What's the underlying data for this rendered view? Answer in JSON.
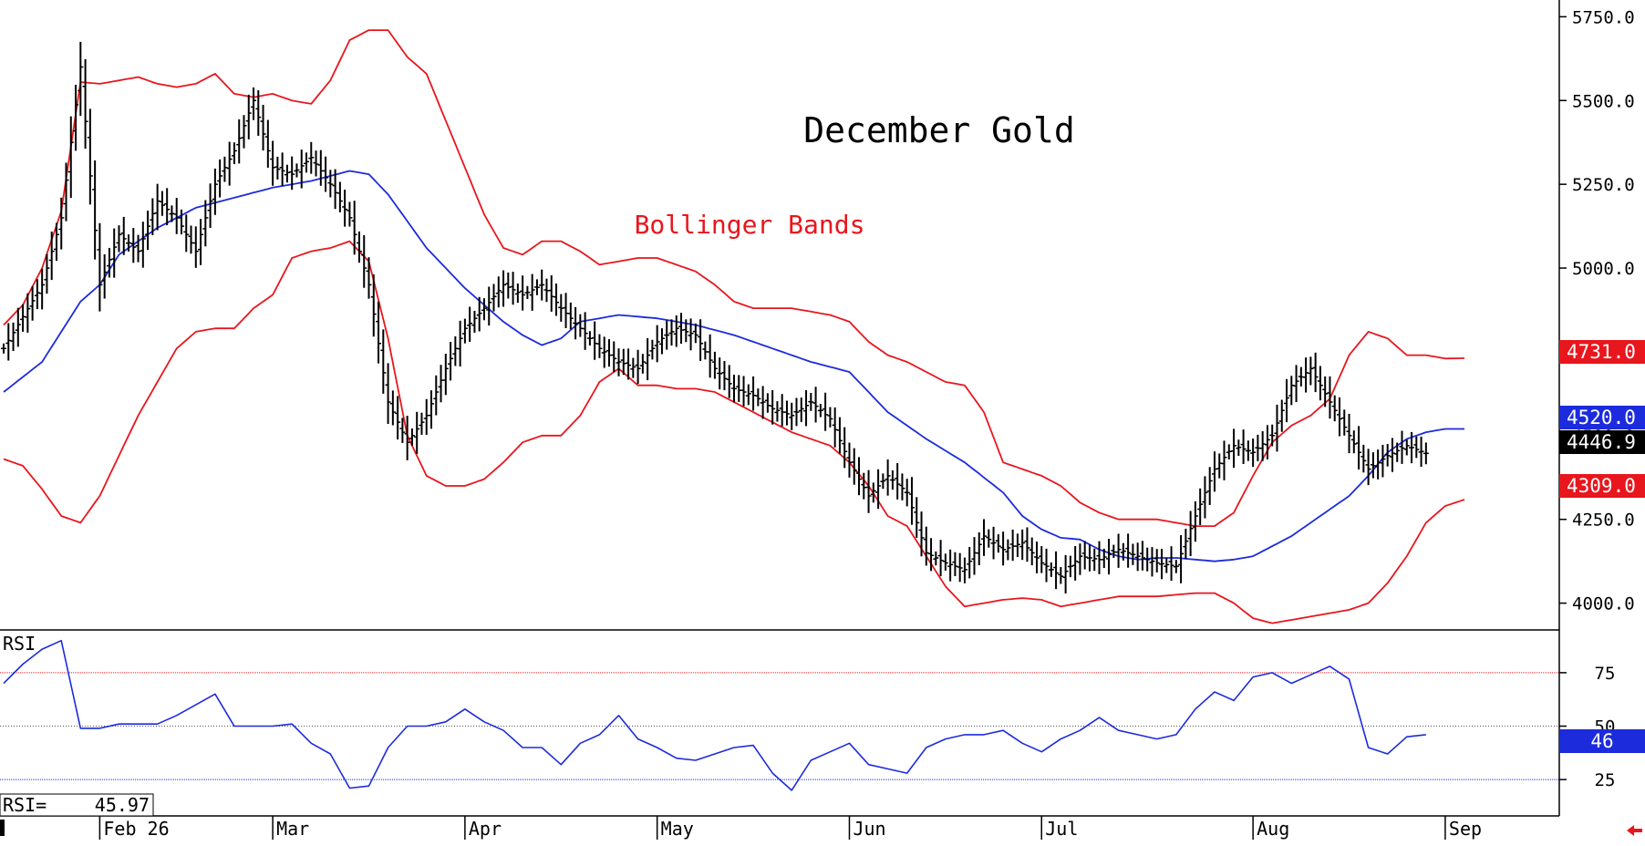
{
  "chart_data": {
    "type": "ohlc",
    "title": "December Gold",
    "annotation": "Bollinger Bands",
    "colors": {
      "price_bars": "#000000",
      "upper_band": "#e8161d",
      "lower_band": "#e8161d",
      "middle_band": "#1c2bdc",
      "rsi_line": "#1c2bdc",
      "rsi_upper_ref": "#e8161d",
      "rsi_mid_ref": "#555555",
      "rsi_lower_ref": "#1c2bdc",
      "badge_upper": "#e8161d",
      "badge_mid": "#1c2bdc",
      "badge_last": "#000000",
      "badge_lower": "#e8161d"
    },
    "price_axis": {
      "position": "right",
      "range": [
        3920,
        5800
      ],
      "ticks": [
        "5750.0",
        "5500.0",
        "5250.0",
        "5000.0",
        "4750.0",
        "4500.0",
        "4250.0",
        "4000.0"
      ],
      "tick_values": [
        5750,
        5500,
        5250,
        5000,
        4750,
        4500,
        4250,
        4000
      ]
    },
    "time_axis": {
      "labels": [
        "Feb 26",
        "Mar",
        "Apr",
        "May",
        "Jun",
        "Jul",
        "Aug",
        "Sep"
      ],
      "label_positions": [
        5,
        14,
        24,
        34,
        44,
        54,
        65,
        75
      ]
    },
    "badges": {
      "upper": "4731.0",
      "middle": "4520.0",
      "last": "4446.9",
      "lower": "4309.0"
    },
    "rsi": {
      "label": "RSI",
      "readout_label": "RSI=",
      "readout_value": "45.97",
      "badge": "46",
      "ticks": [
        "75",
        "50",
        "25"
      ],
      "tick_values": [
        75,
        50,
        25
      ],
      "range": [
        8,
        95
      ],
      "reference_levels": [
        75,
        50,
        25
      ]
    },
    "series": {
      "upper_knots": [
        [
          0,
          4830
        ],
        [
          1,
          4890
        ],
        [
          2,
          5000
        ],
        [
          3,
          5170
        ],
        [
          4,
          5555
        ],
        [
          5,
          5550
        ],
        [
          6,
          5560
        ],
        [
          7,
          5570
        ],
        [
          8,
          5550
        ],
        [
          9,
          5540
        ],
        [
          10,
          5550
        ],
        [
          11,
          5580
        ],
        [
          12,
          5520
        ],
        [
          13,
          5510
        ],
        [
          14,
          5520
        ],
        [
          15,
          5500
        ],
        [
          16,
          5490
        ],
        [
          17,
          5560
        ],
        [
          18,
          5680
        ],
        [
          19,
          5710
        ],
        [
          20,
          5710
        ],
        [
          21,
          5630
        ],
        [
          22,
          5580
        ],
        [
          23,
          5440
        ],
        [
          24,
          5300
        ],
        [
          25,
          5160
        ],
        [
          26,
          5060
        ],
        [
          27,
          5040
        ],
        [
          28,
          5080
        ],
        [
          29,
          5080
        ],
        [
          30,
          5050
        ],
        [
          31,
          5010
        ],
        [
          32,
          5020
        ],
        [
          33,
          5030
        ],
        [
          34,
          5030
        ],
        [
          35,
          5010
        ],
        [
          36,
          4990
        ],
        [
          37,
          4950
        ],
        [
          38,
          4900
        ],
        [
          39,
          4880
        ],
        [
          40,
          4880
        ],
        [
          41,
          4880
        ],
        [
          42,
          4870
        ],
        [
          43,
          4860
        ],
        [
          44,
          4840
        ],
        [
          45,
          4780
        ],
        [
          46,
          4740
        ],
        [
          47,
          4720
        ],
        [
          48,
          4690
        ],
        [
          49,
          4660
        ],
        [
          50,
          4650
        ],
        [
          51,
          4570
        ],
        [
          52,
          4420
        ],
        [
          53,
          4400
        ],
        [
          54,
          4380
        ],
        [
          55,
          4350
        ],
        [
          56,
          4300
        ],
        [
          57,
          4270
        ],
        [
          58,
          4250
        ],
        [
          59,
          4250
        ],
        [
          60,
          4250
        ],
        [
          61,
          4240
        ],
        [
          62,
          4230
        ],
        [
          63,
          4230
        ],
        [
          64,
          4270
        ],
        [
          65,
          4380
        ],
        [
          66,
          4480
        ],
        [
          67,
          4530
        ],
        [
          68,
          4560
        ],
        [
          69,
          4610
        ],
        [
          70,
          4740
        ],
        [
          71,
          4810
        ],
        [
          72,
          4790
        ],
        [
          73,
          4740
        ],
        [
          74,
          4740
        ],
        [
          75,
          4730
        ],
        [
          76,
          4731
        ]
      ],
      "middle_knots": [
        [
          0,
          4630
        ],
        [
          2,
          4720
        ],
        [
          4,
          4900
        ],
        [
          5,
          4950
        ],
        [
          6,
          5040
        ],
        [
          8,
          5120
        ],
        [
          10,
          5180
        ],
        [
          12,
          5210
        ],
        [
          14,
          5240
        ],
        [
          16,
          5260
        ],
        [
          18,
          5290
        ],
        [
          19,
          5280
        ],
        [
          20,
          5220
        ],
        [
          21,
          5140
        ],
        [
          22,
          5060
        ],
        [
          23,
          5000
        ],
        [
          24,
          4940
        ],
        [
          25,
          4890
        ],
        [
          26,
          4840
        ],
        [
          27,
          4800
        ],
        [
          28,
          4770
        ],
        [
          29,
          4790
        ],
        [
          30,
          4840
        ],
        [
          32,
          4860
        ],
        [
          34,
          4850
        ],
        [
          36,
          4830
        ],
        [
          38,
          4800
        ],
        [
          40,
          4760
        ],
        [
          42,
          4720
        ],
        [
          44,
          4690
        ],
        [
          45,
          4630
        ],
        [
          46,
          4570
        ],
        [
          48,
          4490
        ],
        [
          50,
          4420
        ],
        [
          52,
          4330
        ],
        [
          53,
          4260
        ],
        [
          54,
          4220
        ],
        [
          55,
          4195
        ],
        [
          56,
          4190
        ],
        [
          57,
          4160
        ],
        [
          58,
          4140
        ],
        [
          59,
          4130
        ],
        [
          60,
          4135
        ],
        [
          61,
          4135
        ],
        [
          62,
          4130
        ],
        [
          63,
          4125
        ],
        [
          64,
          4130
        ],
        [
          65,
          4140
        ],
        [
          66,
          4170
        ],
        [
          67,
          4200
        ],
        [
          68,
          4240
        ],
        [
          69,
          4280
        ],
        [
          70,
          4320
        ],
        [
          71,
          4380
        ],
        [
          72,
          4450
        ],
        [
          73,
          4490
        ],
        [
          74,
          4510
        ],
        [
          75,
          4520
        ],
        [
          76,
          4520
        ]
      ],
      "lower_knots": [
        [
          0,
          4430
        ],
        [
          1,
          4410
        ],
        [
          2,
          4340
        ],
        [
          3,
          4260
        ],
        [
          4,
          4240
        ],
        [
          5,
          4320
        ],
        [
          6,
          4440
        ],
        [
          7,
          4560
        ],
        [
          8,
          4660
        ],
        [
          9,
          4760
        ],
        [
          10,
          4810
        ],
        [
          11,
          4820
        ],
        [
          12,
          4820
        ],
        [
          13,
          4880
        ],
        [
          14,
          4920
        ],
        [
          15,
          5030
        ],
        [
          16,
          5050
        ],
        [
          17,
          5060
        ],
        [
          18,
          5080
        ],
        [
          19,
          5020
        ],
        [
          20,
          4790
        ],
        [
          21,
          4500
        ],
        [
          22,
          4380
        ],
        [
          23,
          4350
        ],
        [
          24,
          4350
        ],
        [
          25,
          4370
        ],
        [
          26,
          4420
        ],
        [
          27,
          4480
        ],
        [
          28,
          4500
        ],
        [
          29,
          4500
        ],
        [
          30,
          4560
        ],
        [
          31,
          4660
        ],
        [
          32,
          4700
        ],
        [
          33,
          4650
        ],
        [
          34,
          4650
        ],
        [
          35,
          4640
        ],
        [
          36,
          4640
        ],
        [
          37,
          4630
        ],
        [
          38,
          4600
        ],
        [
          39,
          4570
        ],
        [
          40,
          4540
        ],
        [
          41,
          4510
        ],
        [
          42,
          4490
        ],
        [
          43,
          4470
        ],
        [
          44,
          4420
        ],
        [
          45,
          4350
        ],
        [
          46,
          4260
        ],
        [
          47,
          4230
        ],
        [
          48,
          4140
        ],
        [
          49,
          4050
        ],
        [
          50,
          3990
        ],
        [
          51,
          4000
        ],
        [
          52,
          4010
        ],
        [
          53,
          4015
        ],
        [
          54,
          4010
        ],
        [
          55,
          3990
        ],
        [
          56,
          4000
        ],
        [
          57,
          4010
        ],
        [
          58,
          4020
        ],
        [
          59,
          4020
        ],
        [
          60,
          4020
        ],
        [
          61,
          4025
        ],
        [
          62,
          4030
        ],
        [
          63,
          4030
        ],
        [
          64,
          4000
        ],
        [
          65,
          3955
        ],
        [
          66,
          3940
        ],
        [
          67,
          3950
        ],
        [
          68,
          3960
        ],
        [
          69,
          3970
        ],
        [
          70,
          3980
        ],
        [
          71,
          4000
        ],
        [
          72,
          4060
        ],
        [
          73,
          4140
        ],
        [
          74,
          4240
        ],
        [
          75,
          4290
        ],
        [
          76,
          4309
        ]
      ],
      "close_knots": [
        [
          0,
          4760
        ],
        [
          2,
          4950
        ],
        [
          3,
          5150
        ],
        [
          4,
          5600
        ],
        [
          5,
          4950
        ],
        [
          6,
          5100
        ],
        [
          7,
          5050
        ],
        [
          8,
          5200
        ],
        [
          9,
          5150
        ],
        [
          10,
          5050
        ],
        [
          11,
          5250
        ],
        [
          12,
          5350
        ],
        [
          13,
          5500
        ],
        [
          14,
          5300
        ],
        [
          15,
          5280
        ],
        [
          16,
          5330
        ],
        [
          17,
          5250
        ],
        [
          18,
          5150
        ],
        [
          19,
          4950
        ],
        [
          20,
          4600
        ],
        [
          21,
          4480
        ],
        [
          22,
          4560
        ],
        [
          23,
          4700
        ],
        [
          24,
          4820
        ],
        [
          25,
          4880
        ],
        [
          26,
          4950
        ],
        [
          27,
          4920
        ],
        [
          28,
          4950
        ],
        [
          29,
          4880
        ],
        [
          30,
          4820
        ],
        [
          31,
          4760
        ],
        [
          32,
          4720
        ],
        [
          33,
          4700
        ],
        [
          34,
          4780
        ],
        [
          35,
          4820
        ],
        [
          36,
          4800
        ],
        [
          37,
          4700
        ],
        [
          38,
          4640
        ],
        [
          39,
          4620
        ],
        [
          40,
          4580
        ],
        [
          41,
          4560
        ],
        [
          42,
          4600
        ],
        [
          43,
          4550
        ],
        [
          44,
          4420
        ],
        [
          45,
          4320
        ],
        [
          46,
          4380
        ],
        [
          47,
          4330
        ],
        [
          48,
          4150
        ],
        [
          49,
          4120
        ],
        [
          50,
          4100
        ],
        [
          51,
          4200
        ],
        [
          52,
          4160
        ],
        [
          53,
          4180
        ],
        [
          54,
          4120
        ],
        [
          55,
          4080
        ],
        [
          56,
          4140
        ],
        [
          57,
          4130
        ],
        [
          58,
          4160
        ],
        [
          59,
          4140
        ],
        [
          60,
          4120
        ],
        [
          61,
          4110
        ],
        [
          62,
          4260
        ],
        [
          63,
          4400
        ],
        [
          64,
          4470
        ],
        [
          65,
          4450
        ],
        [
          66,
          4500
        ],
        [
          67,
          4650
        ],
        [
          68,
          4700
        ],
        [
          69,
          4600
        ],
        [
          70,
          4500
        ],
        [
          71,
          4400
        ],
        [
          72,
          4440
        ],
        [
          73,
          4470
        ],
        [
          74,
          4447
        ]
      ],
      "rsi_knots": [
        [
          0,
          70
        ],
        [
          1,
          79
        ],
        [
          2,
          86
        ],
        [
          3,
          90
        ],
        [
          4,
          49
        ],
        [
          5,
          49
        ],
        [
          6,
          51
        ],
        [
          7,
          51
        ],
        [
          8,
          51
        ],
        [
          9,
          55
        ],
        [
          10,
          60
        ],
        [
          11,
          65
        ],
        [
          12,
          50
        ],
        [
          13,
          50
        ],
        [
          14,
          50
        ],
        [
          15,
          51
        ],
        [
          16,
          42
        ],
        [
          17,
          37
        ],
        [
          18,
          21
        ],
        [
          19,
          22
        ],
        [
          20,
          40
        ],
        [
          21,
          50
        ],
        [
          22,
          50
        ],
        [
          23,
          52
        ],
        [
          24,
          58
        ],
        [
          25,
          52
        ],
        [
          26,
          48
        ],
        [
          27,
          40
        ],
        [
          28,
          40
        ],
        [
          29,
          32
        ],
        [
          30,
          42
        ],
        [
          31,
          46
        ],
        [
          32,
          55
        ],
        [
          33,
          44
        ],
        [
          34,
          40
        ],
        [
          35,
          35
        ],
        [
          36,
          34
        ],
        [
          37,
          37
        ],
        [
          38,
          40
        ],
        [
          39,
          41
        ],
        [
          40,
          28
        ],
        [
          41,
          20
        ],
        [
          42,
          34
        ],
        [
          43,
          38
        ],
        [
          44,
          42
        ],
        [
          45,
          32
        ],
        [
          46,
          30
        ],
        [
          47,
          28
        ],
        [
          48,
          40
        ],
        [
          49,
          44
        ],
        [
          50,
          46
        ],
        [
          51,
          46
        ],
        [
          52,
          48
        ],
        [
          53,
          42
        ],
        [
          54,
          38
        ],
        [
          55,
          44
        ],
        [
          56,
          48
        ],
        [
          57,
          54
        ],
        [
          58,
          48
        ],
        [
          59,
          46
        ],
        [
          60,
          44
        ],
        [
          61,
          46
        ],
        [
          62,
          58
        ],
        [
          63,
          66
        ],
        [
          64,
          62
        ],
        [
          65,
          73
        ],
        [
          66,
          75
        ],
        [
          67,
          70
        ],
        [
          68,
          74
        ],
        [
          69,
          78
        ],
        [
          70,
          72
        ],
        [
          71,
          40
        ],
        [
          72,
          37
        ],
        [
          73,
          45
        ],
        [
          74,
          46
        ]
      ]
    }
  }
}
